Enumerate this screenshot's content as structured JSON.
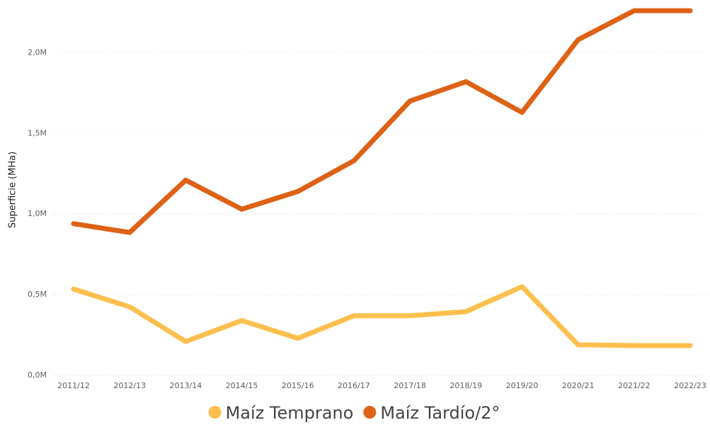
{
  "chart_data": {
    "type": "line",
    "y_label": "Superficie (MHa)",
    "categories": [
      "2011/12",
      "2012/13",
      "2013/14",
      "2014/15",
      "2015/16",
      "2016/17",
      "2017/18",
      "2018/19",
      "2019/20",
      "2020/21",
      "2021/22",
      "2022/23"
    ],
    "series": [
      {
        "name": "Maíz Temprano",
        "color": "#fdbf4e",
        "values": [
          535000,
          425000,
          210000,
          340000,
          230000,
          370000,
          370000,
          395000,
          550000,
          190000,
          185000,
          185000
        ]
      },
      {
        "name": "Maíz Tardío/2°",
        "color": "#de6216",
        "values": [
          940000,
          886000,
          1210000,
          1030000,
          1140000,
          1330000,
          1700000,
          1820000,
          1630000,
          2080000,
          2260000,
          2260000
        ]
      }
    ],
    "ylim": [
      0,
      2300000
    ],
    "yticks": [
      {
        "value": 0,
        "label": "0,0M"
      },
      {
        "value": 500000,
        "label": "0,5M"
      },
      {
        "value": 1000000,
        "label": "1,0M"
      },
      {
        "value": 1500000,
        "label": "1,5M"
      },
      {
        "value": 2000000,
        "label": "2,0M"
      }
    ],
    "grid": true
  }
}
